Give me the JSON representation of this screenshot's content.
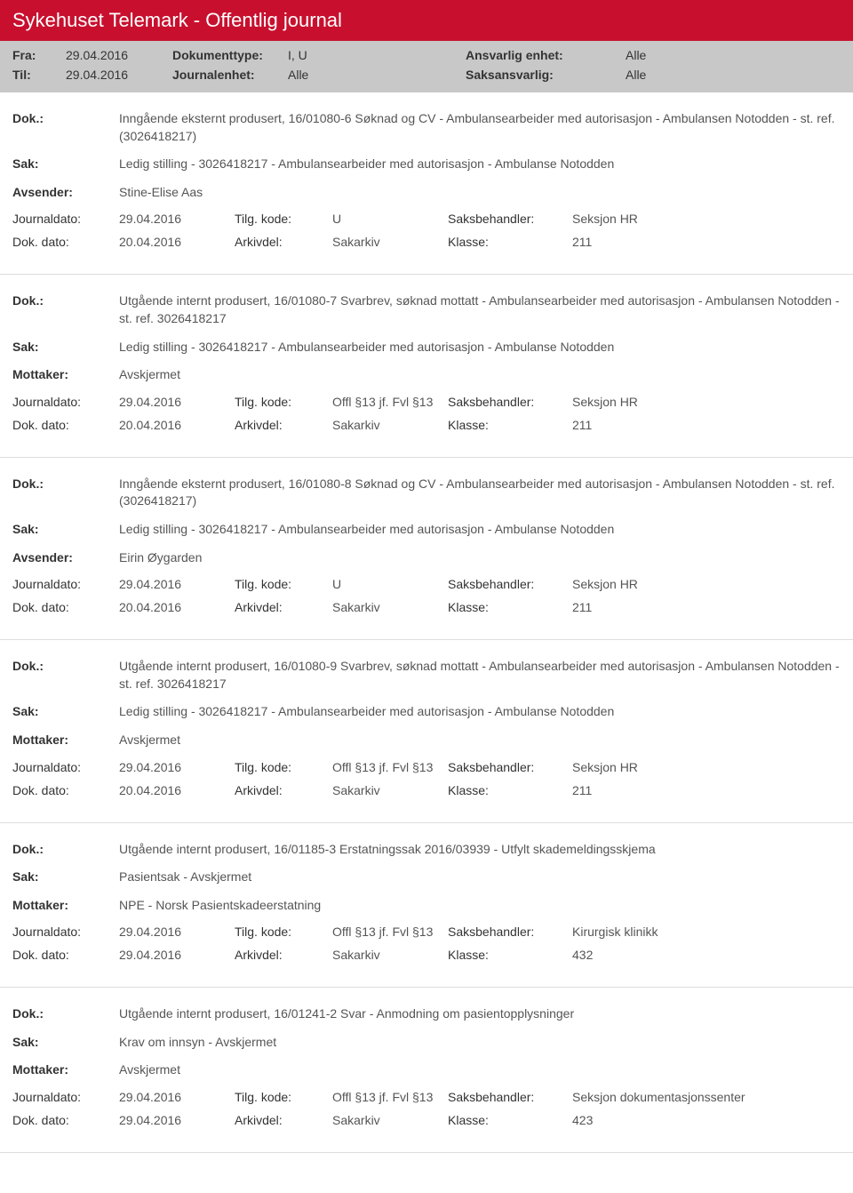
{
  "header": {
    "title": "Sykehuset Telemark - Offentlig journal",
    "row1": {
      "label_from": "Fra:",
      "from": "29.04.2016",
      "label_doctype": "Dokumenttype:",
      "doctype": "I, U",
      "label_unit": "Ansvarlig enhet:",
      "unit": "Alle"
    },
    "row2": {
      "label_to": "Til:",
      "to": "29.04.2016",
      "label_journalunit": "Journalenhet:",
      "journalunit": "Alle",
      "label_caseresp": "Saksansvarlig:",
      "caseresp": "Alle"
    }
  },
  "labels": {
    "dok": "Dok.:",
    "sak": "Sak:",
    "avsender": "Avsender:",
    "mottaker": "Mottaker:",
    "journaldato": "Journaldato:",
    "tilgkode": "Tilg. kode:",
    "saksbehandler": "Saksbehandler:",
    "dokdato": "Dok. dato:",
    "arkivdel": "Arkivdel:",
    "klasse": "Klasse:"
  },
  "entries": [
    {
      "dok": "Inngående eksternt produsert, 16/01080-6 Søknad og CV - Ambulansearbeider med autorisasjon - Ambulansen Notodden - st. ref. (3026418217)",
      "sak": "Ledig stilling - 3026418217 - Ambulansearbeider med autorisasjon - Ambulanse Notodden",
      "party_label": "Avsender:",
      "party": "Stine-Elise Aas",
      "journaldato": "29.04.2016",
      "tilgkode": "U",
      "saksbehandler": "Seksjon HR",
      "dokdato": "20.04.2016",
      "arkivdel": "Sakarkiv",
      "klasse": "211"
    },
    {
      "dok": "Utgående internt produsert, 16/01080-7 Svarbrev, søknad mottatt - Ambulansearbeider med autorisasjon - Ambulansen Notodden  - st. ref. 3026418217",
      "sak": "Ledig stilling - 3026418217 - Ambulansearbeider med autorisasjon - Ambulanse Notodden",
      "party_label": "Mottaker:",
      "party": "Avskjermet",
      "journaldato": "29.04.2016",
      "tilgkode": "Offl §13 jf. Fvl §13",
      "saksbehandler": "Seksjon HR",
      "dokdato": "20.04.2016",
      "arkivdel": "Sakarkiv",
      "klasse": "211"
    },
    {
      "dok": "Inngående eksternt produsert, 16/01080-8 Søknad og CV - Ambulansearbeider med autorisasjon - Ambulansen Notodden - st. ref. (3026418217)",
      "sak": "Ledig stilling - 3026418217 - Ambulansearbeider med autorisasjon - Ambulanse Notodden",
      "party_label": "Avsender:",
      "party": "Eirin Øygarden",
      "journaldato": "29.04.2016",
      "tilgkode": "U",
      "saksbehandler": "Seksjon HR",
      "dokdato": "20.04.2016",
      "arkivdel": "Sakarkiv",
      "klasse": "211"
    },
    {
      "dok": "Utgående internt produsert, 16/01080-9 Svarbrev, søknad mottatt - Ambulansearbeider med autorisasjon - Ambulansen Notodden  - st. ref. 3026418217",
      "sak": "Ledig stilling - 3026418217 - Ambulansearbeider med autorisasjon - Ambulanse Notodden",
      "party_label": "Mottaker:",
      "party": "Avskjermet",
      "journaldato": "29.04.2016",
      "tilgkode": "Offl §13 jf. Fvl §13",
      "saksbehandler": "Seksjon HR",
      "dokdato": "20.04.2016",
      "arkivdel": "Sakarkiv",
      "klasse": "211"
    },
    {
      "dok": "Utgående internt produsert, 16/01185-3 Erstatningssak 2016/03939 - Utfylt skademeldingsskjema",
      "sak": "Pasientsak - Avskjermet",
      "party_label": "Mottaker:",
      "party": "NPE - Norsk Pasientskadeerstatning",
      "journaldato": "29.04.2016",
      "tilgkode": "Offl §13 jf. Fvl §13",
      "saksbehandler": "Kirurgisk klinikk",
      "dokdato": "29.04.2016",
      "arkivdel": "Sakarkiv",
      "klasse": "432"
    },
    {
      "dok": "Utgående internt produsert, 16/01241-2 Svar - Anmodning om pasientopplysninger",
      "sak": "Krav om innsyn - Avskjermet",
      "party_label": "Mottaker:",
      "party": "Avskjermet",
      "journaldato": "29.04.2016",
      "tilgkode": "Offl §13 jf. Fvl §13",
      "saksbehandler": "Seksjon dokumentasjonssenter",
      "dokdato": "29.04.2016",
      "arkivdel": "Sakarkiv",
      "klasse": "423"
    }
  ]
}
